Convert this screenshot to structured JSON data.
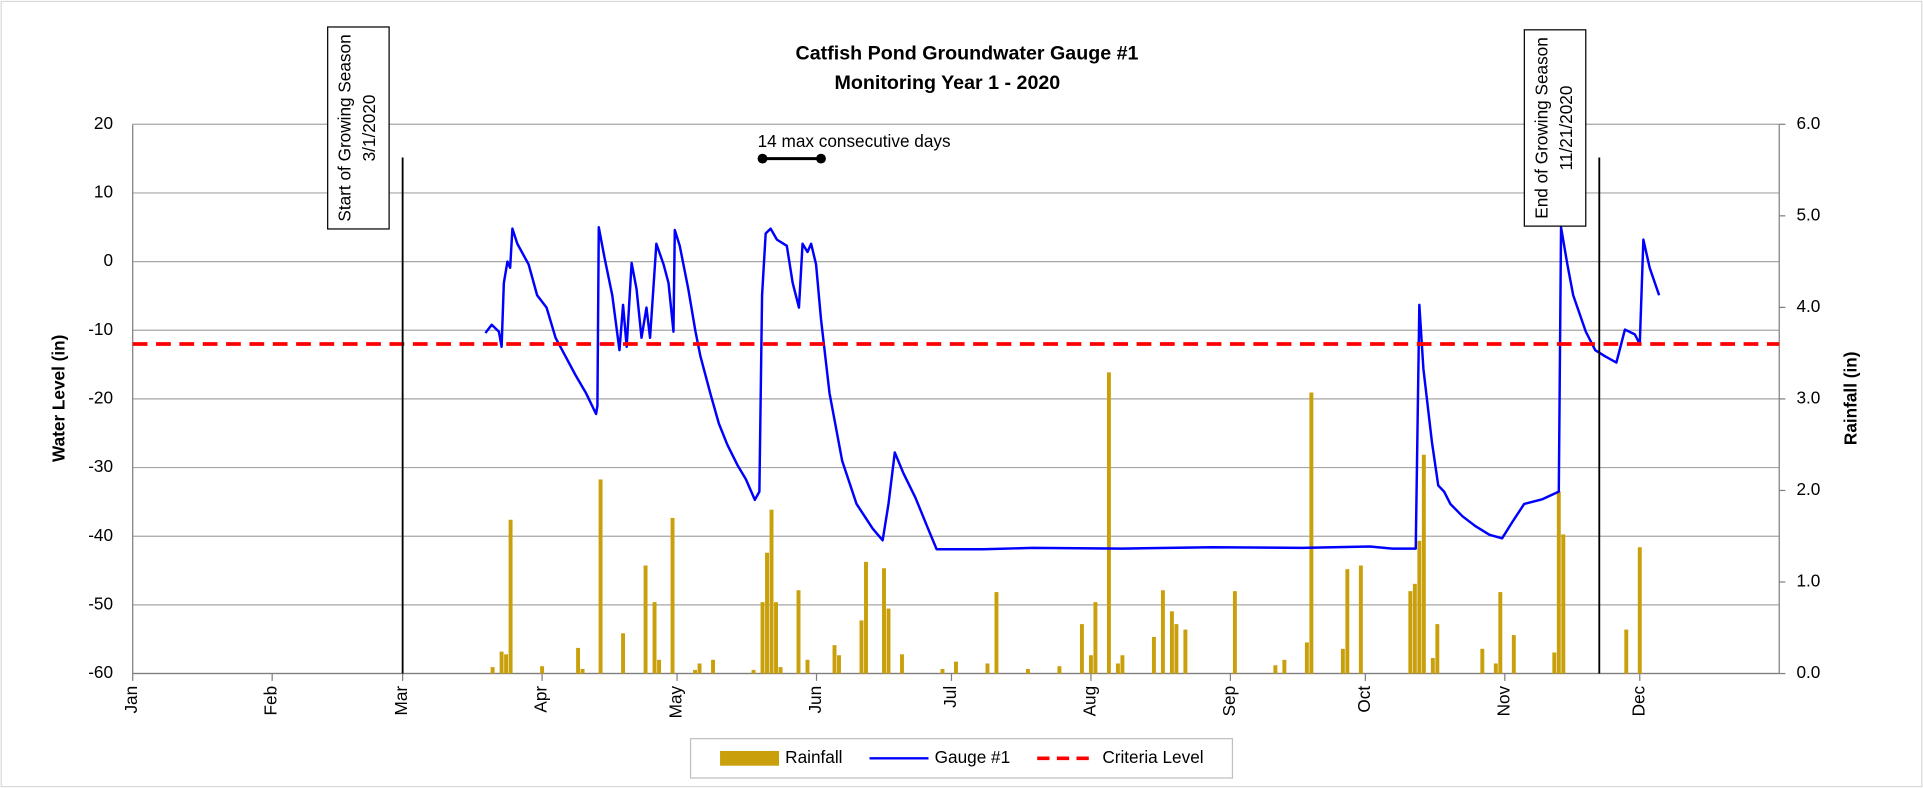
{
  "chart_data": {
    "type": "line",
    "title": "Catfish Pond Groundwater Gauge #1",
    "subtitle": "Monitoring Year 1 - 2020",
    "ylabel": "Water Level (in)",
    "y2label": "Rainfall (in)",
    "xlim": [
      0,
      366
    ],
    "xticks": [
      {
        "value": 0,
        "label": "Jan"
      },
      {
        "value": 31,
        "label": "Feb"
      },
      {
        "value": 60,
        "label": "Mar"
      },
      {
        "value": 91,
        "label": "Apr"
      },
      {
        "value": 121,
        "label": "May"
      },
      {
        "value": 152,
        "label": "Jun"
      },
      {
        "value": 182,
        "label": "Jul"
      },
      {
        "value": 213,
        "label": "Aug"
      },
      {
        "value": 244,
        "label": "Sep"
      },
      {
        "value": 274,
        "label": "Oct"
      },
      {
        "value": 305,
        "label": "Nov"
      },
      {
        "value": 335,
        "label": "Dec"
      }
    ],
    "ylim": [
      -60,
      20
    ],
    "yticks": [
      -60,
      -50,
      -40,
      -30,
      -20,
      -10,
      0,
      10,
      20
    ],
    "y2lim": [
      0,
      6
    ],
    "y2ticks": [
      {
        "value": 0,
        "label": "0.0"
      },
      {
        "value": 1,
        "label": "1.0"
      },
      {
        "value": 2,
        "label": "2.0"
      },
      {
        "value": 3,
        "label": "3.0"
      },
      {
        "value": 4,
        "label": "4.0"
      },
      {
        "value": 5,
        "label": "5.0"
      },
      {
        "value": 6,
        "label": "6.0"
      }
    ],
    "grid": true,
    "series": [
      {
        "name": "Rainfall",
        "type": "bar",
        "axis": "y2",
        "color": "#c9a00c",
        "x": [
          80,
          82,
          83,
          84,
          91,
          99,
          100,
          104,
          109,
          114,
          116,
          117,
          120,
          125,
          126,
          129,
          138,
          140,
          141,
          142,
          143,
          144,
          148,
          150,
          156,
          157,
          162,
          163,
          167,
          168,
          171,
          180,
          183,
          190,
          192,
          199,
          206,
          211,
          213,
          214,
          217,
          219,
          220,
          227,
          229,
          231,
          232,
          234,
          245,
          254,
          256,
          261,
          262,
          269,
          270,
          273,
          284,
          285,
          286,
          287,
          289,
          290,
          300,
          303,
          304,
          307,
          316,
          317,
          318,
          332,
          335
        ],
        "values": [
          0.07,
          0.24,
          0.21,
          1.68,
          0.08,
          0.28,
          0.05,
          2.12,
          0.44,
          1.18,
          0.78,
          0.15,
          1.7,
          0.04,
          0.11,
          0.15,
          0.04,
          0.78,
          1.32,
          1.79,
          0.78,
          0.07,
          0.91,
          0.15,
          0.31,
          0.2,
          0.58,
          1.22,
          1.15,
          0.71,
          0.21,
          0.05,
          0.13,
          0.11,
          0.89,
          0.05,
          0.08,
          0.54,
          0.2,
          0.78,
          3.29,
          0.11,
          0.2,
          0.4,
          0.91,
          0.68,
          0.54,
          0.48,
          0.9,
          0.09,
          0.15,
          0.34,
          3.07,
          0.27,
          1.14,
          1.18,
          0.9,
          0.98,
          1.45,
          2.39,
          0.17,
          0.54,
          0.27,
          0.11,
          0.89,
          0.42,
          0.23,
          1.99,
          1.52,
          0.48,
          1.38
        ]
      },
      {
        "name": "Gauge #1",
        "type": "line",
        "color": "#0000ff",
        "x": [
          78.4,
          79.8,
          81.4,
          82,
          82.5,
          83.3,
          83.9,
          84.4,
          85.5,
          88,
          89.9,
          92,
          94,
          96.2,
          98.4,
          100.8,
          103,
          103.3,
          103.6,
          104.9,
          106.6,
          108.2,
          109,
          109.8,
          110.9,
          112,
          113.1,
          114.2,
          115,
          116.4,
          118,
          119.1,
          120.2,
          120.5,
          121.6,
          123.5,
          125.1,
          126.2,
          128.4,
          130.3,
          132.2,
          134.4,
          136.3,
          138.3,
          139.3,
          139.9,
          140.7,
          141.8,
          143.2,
          145.4,
          146.7,
          148.1,
          148.9,
          150,
          150.8,
          151.9,
          153,
          154.9,
          157.7,
          160.9,
          164.5,
          166.7,
          168,
          169.4,
          171.3,
          174,
          176.8,
          178.7,
          189,
          200,
          220,
          240,
          260,
          275,
          280,
          284.7,
          285.2,
          286,
          286.9,
          288.8,
          290.2,
          291.5,
          292.9,
          295.6,
          298.4,
          301.6,
          304.4,
          306.6,
          309.3,
          313.4,
          317,
          317.5,
          318.9,
          320.2,
          323,
          325.1,
          327.3,
          329.8,
          331.7,
          333.9,
          335,
          335.8,
          337.2,
          339.3
        ],
        "values": [
          -10.4,
          -9.2,
          -10.2,
          -12.4,
          -3.1,
          0,
          -0.9,
          4.8,
          2.6,
          -0.4,
          -4.9,
          -6.7,
          -11.1,
          -13.8,
          -16.5,
          -19.2,
          -22.2,
          -21,
          5,
          0.5,
          -4.9,
          -12.9,
          -6.3,
          -12.4,
          -0.2,
          -4,
          -11.1,
          -6.7,
          -11.1,
          2.6,
          -0.4,
          -3.1,
          -10.2,
          4.6,
          2.3,
          -4,
          -10.2,
          -13.8,
          -19.2,
          -23.6,
          -26.7,
          -29.6,
          -31.7,
          -34.7,
          -33.5,
          -4.9,
          4.1,
          4.8,
          3.2,
          2.3,
          -3.1,
          -6.7,
          2.6,
          1.4,
          2.6,
          -0.4,
          -8.4,
          -19.2,
          -29,
          -35.3,
          -38.9,
          -40.6,
          -35.3,
          -27.8,
          -30.8,
          -34.4,
          -38.9,
          -41.9,
          -41.9,
          -41.7,
          -41.8,
          -41.6,
          -41.7,
          -41.5,
          -41.8,
          -41.8,
          -41.8,
          -6.3,
          -15.6,
          -26.3,
          -32.6,
          -33.5,
          -35.3,
          -37.1,
          -38.5,
          -39.8,
          -40.3,
          -38,
          -35.3,
          -34.6,
          -33.5,
          5,
          -0.4,
          -4.9,
          -10.2,
          -12.9,
          -13.8,
          -14.7,
          -9.9,
          -10.6,
          -12,
          3.2,
          -0.9,
          -4.9
        ]
      },
      {
        "name": "Criteria Level",
        "type": "hline",
        "color": "#ff0000",
        "dashed": true,
        "values": [
          -12
        ]
      }
    ],
    "markers": [
      {
        "x": 60,
        "label_lines": [
          "Start of Growing Season",
          "3/1/2020"
        ]
      },
      {
        "x": 326,
        "label_lines": [
          "End of Growing Season",
          "11/21/2020"
        ]
      }
    ],
    "annotation": {
      "text": "14 max consecutive days",
      "x": [
        140,
        153
      ],
      "y": 15
    }
  }
}
